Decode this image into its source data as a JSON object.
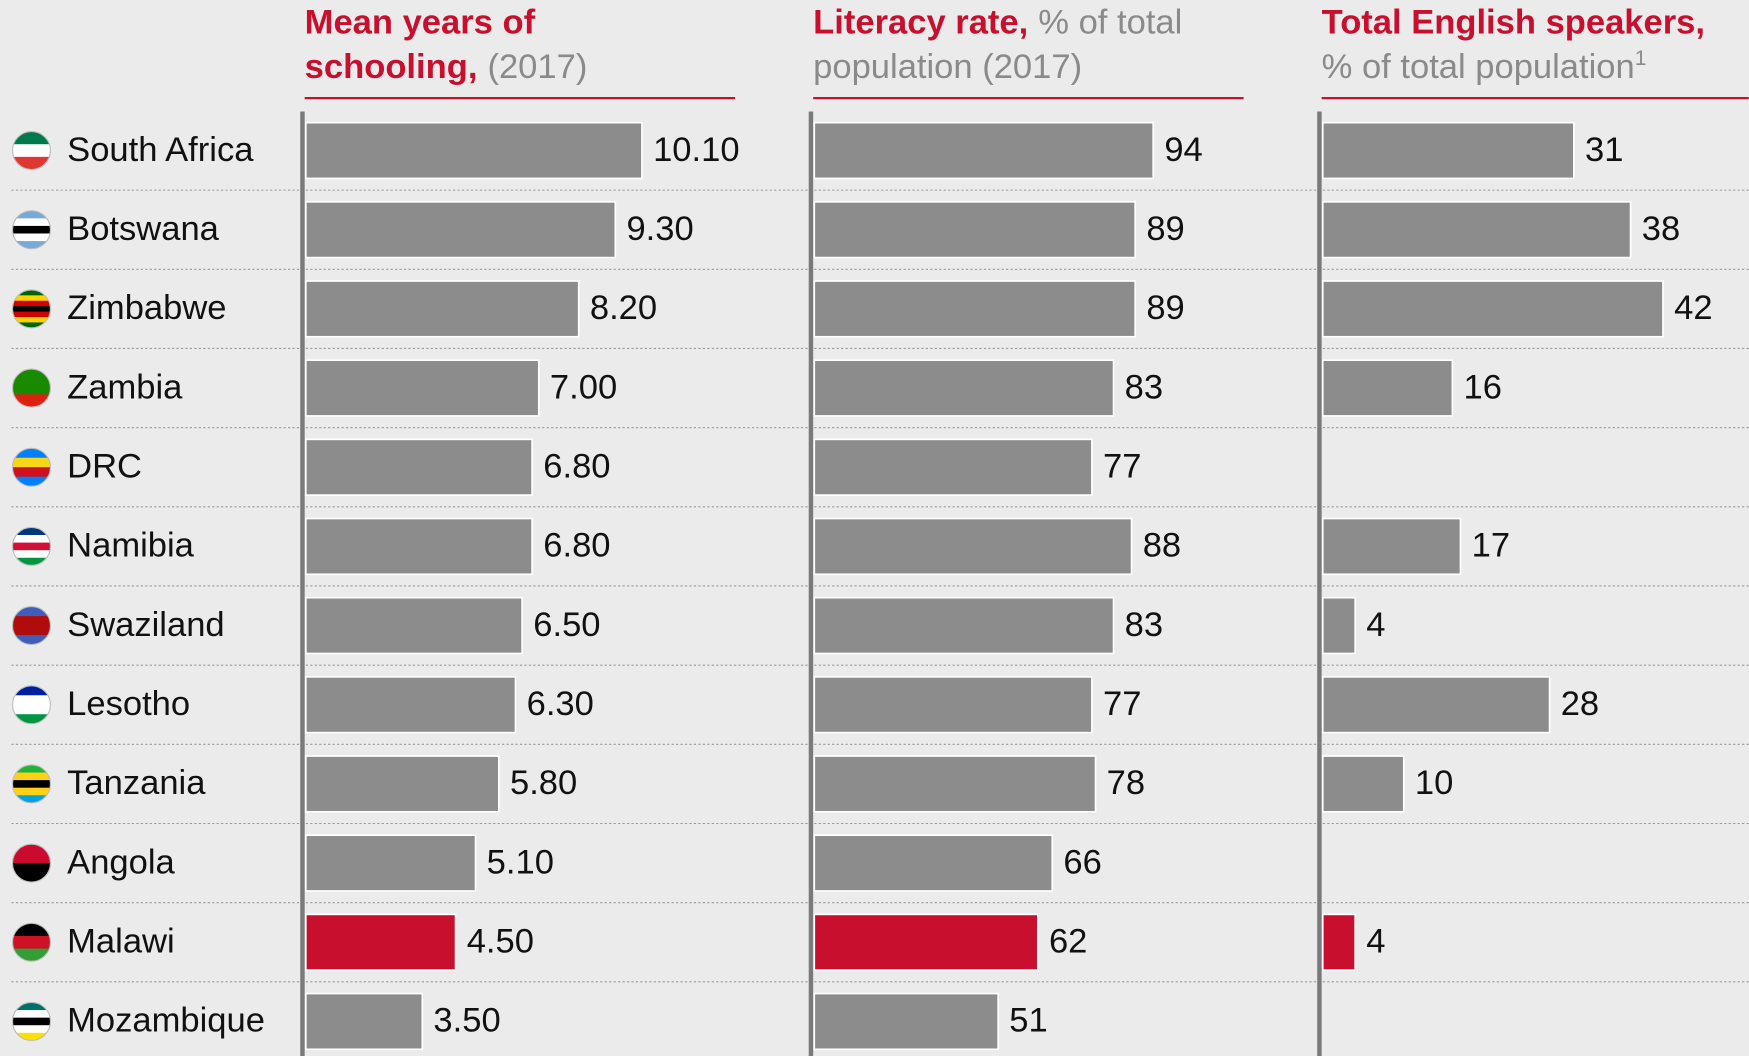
{
  "categories": [
    "South Africa",
    "Botswana",
    "Zimbabwe",
    "Zambia",
    "DRC",
    "Namibia",
    "Swaziland",
    "Lesotho",
    "Tanzania",
    "Angola",
    "Malawi",
    "Mozambique"
  ],
  "chart_data": [
    {
      "type": "bar",
      "title": [
        [
          {
            "text": "Mean years of",
            "accent": true
          }
        ],
        [
          {
            "text": "schooling,",
            "accent": true
          },
          {
            "text": "(2017)"
          }
        ]
      ],
      "values": [
        10.1,
        9.3,
        8.2,
        7.0,
        6.8,
        6.8,
        6.5,
        6.3,
        5.8,
        5.1,
        4.5,
        3.5
      ],
      "value_labels": [
        "10.10",
        "9.30",
        "8.20",
        "7.00",
        "6.80",
        "6.80",
        "6.50",
        "6.30",
        "5.80",
        "5.10",
        "4.50",
        "3.50"
      ],
      "colors": [
        "#8c8c8c",
        "#8c8c8c",
        "#8c8c8c",
        "#8c8c8c",
        "#8c8c8c",
        "#8c8c8c",
        "#8c8c8c",
        "#8c8c8c",
        "#8c8c8c",
        "#8c8c8c",
        "#c8102e",
        "#8c8c8c"
      ],
      "xlim": [
        0,
        13
      ]
    },
    {
      "type": "bar",
      "title": [
        [
          {
            "text": "Literacy rate,",
            "accent": true
          },
          {
            "text": "% of total"
          }
        ],
        [
          {
            "text": "population (2017)"
          }
        ]
      ],
      "values": [
        94,
        89,
        89,
        83,
        77,
        88,
        83,
        77,
        78,
        66,
        62,
        51
      ],
      "colors": [
        "#8c8c8c",
        "#8c8c8c",
        "#8c8c8c",
        "#8c8c8c",
        "#8c8c8c",
        "#8c8c8c",
        "#8c8c8c",
        "#8c8c8c",
        "#8c8c8c",
        "#8c8c8c",
        "#c8102e",
        "#8c8c8c"
      ],
      "xlim": [
        0,
        120
      ]
    },
    {
      "type": "bar",
      "title": [
        [
          {
            "text": "Total English speakers,",
            "accent": true
          }
        ],
        [
          {
            "text": "% of total population"
          },
          {
            "text": "1",
            "superscript": true
          }
        ]
      ],
      "values": [
        31,
        38,
        42,
        16,
        null,
        17,
        4,
        28,
        10,
        null,
        4,
        null
      ],
      "colors": [
        "#8c8c8c",
        "#8c8c8c",
        "#8c8c8c",
        "#8c8c8c",
        "#8c8c8c",
        "#8c8c8c",
        "#8c8c8c",
        "#8c8c8c",
        "#8c8c8c",
        "#8c8c8c",
        "#c8102e",
        "#8c8c8c"
      ],
      "xlim": [
        0,
        53
      ]
    }
  ]
}
